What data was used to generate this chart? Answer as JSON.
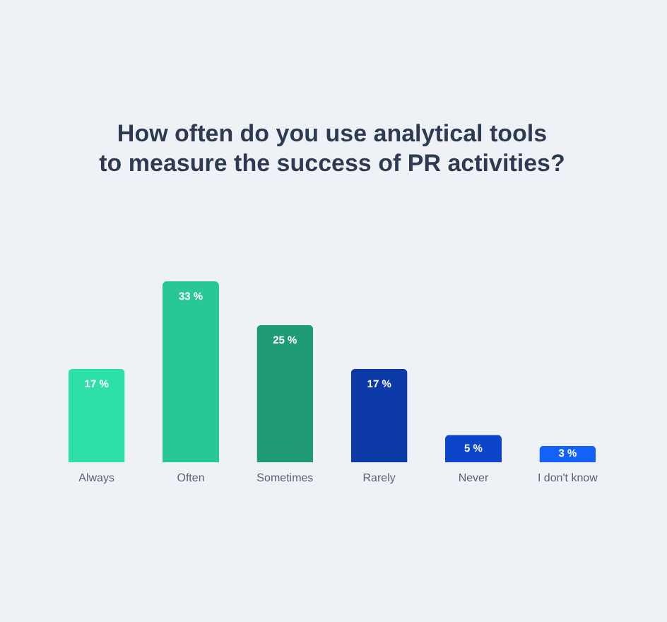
{
  "chart_data": {
    "type": "bar",
    "title": "How often do you use analytical tools\nto measure the success of PR activities?",
    "categories": [
      "Always",
      "Often",
      "Sometimes",
      "Rarely",
      "Never",
      "I don't know"
    ],
    "values": [
      17,
      33,
      25,
      17,
      5,
      3
    ],
    "colors": [
      "#2ddfa9",
      "#28c896",
      "#1f9c77",
      "#0b3aa6",
      "#0c45c9",
      "#1262f7"
    ],
    "value_labels": [
      "17 %",
      "33 %",
      "25 %",
      "17 %",
      "5 %",
      "3 %"
    ],
    "tick_labels": "x"
  }
}
